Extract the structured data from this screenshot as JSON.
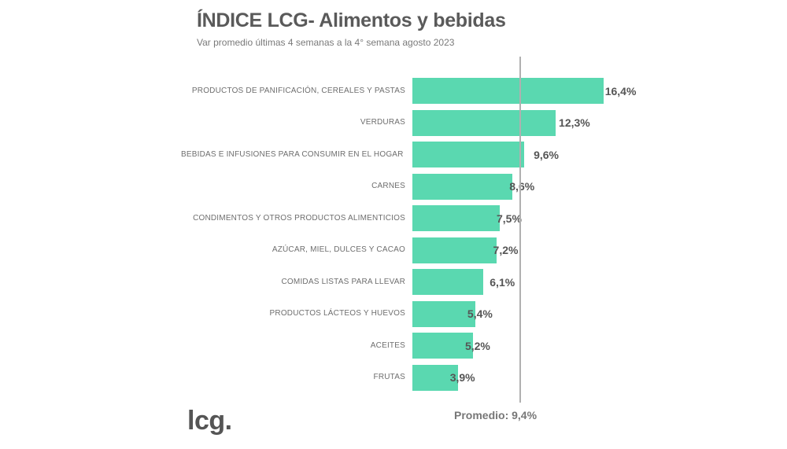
{
  "header": {
    "title": "ÍNDICE LCG- Alimentos y bebidas",
    "subtitle": "Var promedio últimas 4 semanas a la 4° semana agosto 2023"
  },
  "average": {
    "label": "Promedio: 9,4%",
    "value": 9.4
  },
  "logo": {
    "text": "lcg."
  },
  "colors": {
    "bar": "#5ad8b0",
    "average_line": "#b0b0b0",
    "text": "#595959"
  },
  "chart_data": {
    "type": "bar",
    "orientation": "horizontal",
    "title": "ÍNDICE LCG- Alimentos y bebidas",
    "subtitle": "Var promedio últimas 4 semanas a la 4° semana agosto 2023",
    "xlabel": "",
    "ylabel": "",
    "categories": [
      "PRODUCTOS DE PANIFICACIÓN, CEREALES Y PASTAS",
      "VERDURAS",
      "BEBIDAS E INFUSIONES PARA CONSUMIR EN EL HOGAR",
      "CARNES",
      "CONDIMENTOS Y OTROS PRODUCTOS ALIMENTICIOS",
      "AZÚCAR, MIEL, DULCES Y CACAO",
      "COMIDAS LISTAS PARA LLEVAR",
      "PRODUCTOS LÁCTEOS Y HUEVOS",
      "ACEITES",
      "FRUTAS"
    ],
    "values": [
      16.4,
      12.3,
      9.6,
      8.6,
      7.5,
      7.2,
      6.1,
      5.4,
      5.2,
      3.9
    ],
    "value_labels": [
      "16,4%",
      "12,3%",
      "9,6%",
      "8,6%",
      "7,5%",
      "7,2%",
      "6,1%",
      "5,4%",
      "5,2%",
      "3,9%"
    ],
    "reference_line": {
      "label": "Promedio: 9,4%",
      "value": 9.4
    },
    "unit": "%",
    "grid": false,
    "legend": null
  },
  "rows": [
    {
      "label": "PRODUCTOS DE PANIFICACIÓN, CEREALES Y PASTAS",
      "value_label": "16,4%"
    },
    {
      "label": "VERDURAS",
      "value_label": "12,3%"
    },
    {
      "label": "BEBIDAS E INFUSIONES PARA CONSUMIR EN EL HOGAR",
      "value_label": "9,6%"
    },
    {
      "label": "CARNES",
      "value_label": "8,6%"
    },
    {
      "label": "CONDIMENTOS Y OTROS PRODUCTOS ALIMENTICIOS",
      "value_label": "7,5%"
    },
    {
      "label": "AZÚCAR, MIEL, DULCES Y CACAO",
      "value_label": "7,2%"
    },
    {
      "label": "COMIDAS LISTAS PARA LLEVAR",
      "value_label": "6,1%"
    },
    {
      "label": "PRODUCTOS LÁCTEOS Y HUEVOS",
      "value_label": "5,4%"
    },
    {
      "label": "ACEITES",
      "value_label": "5,2%"
    },
    {
      "label": "FRUTAS",
      "value_label": "3,9%"
    }
  ]
}
